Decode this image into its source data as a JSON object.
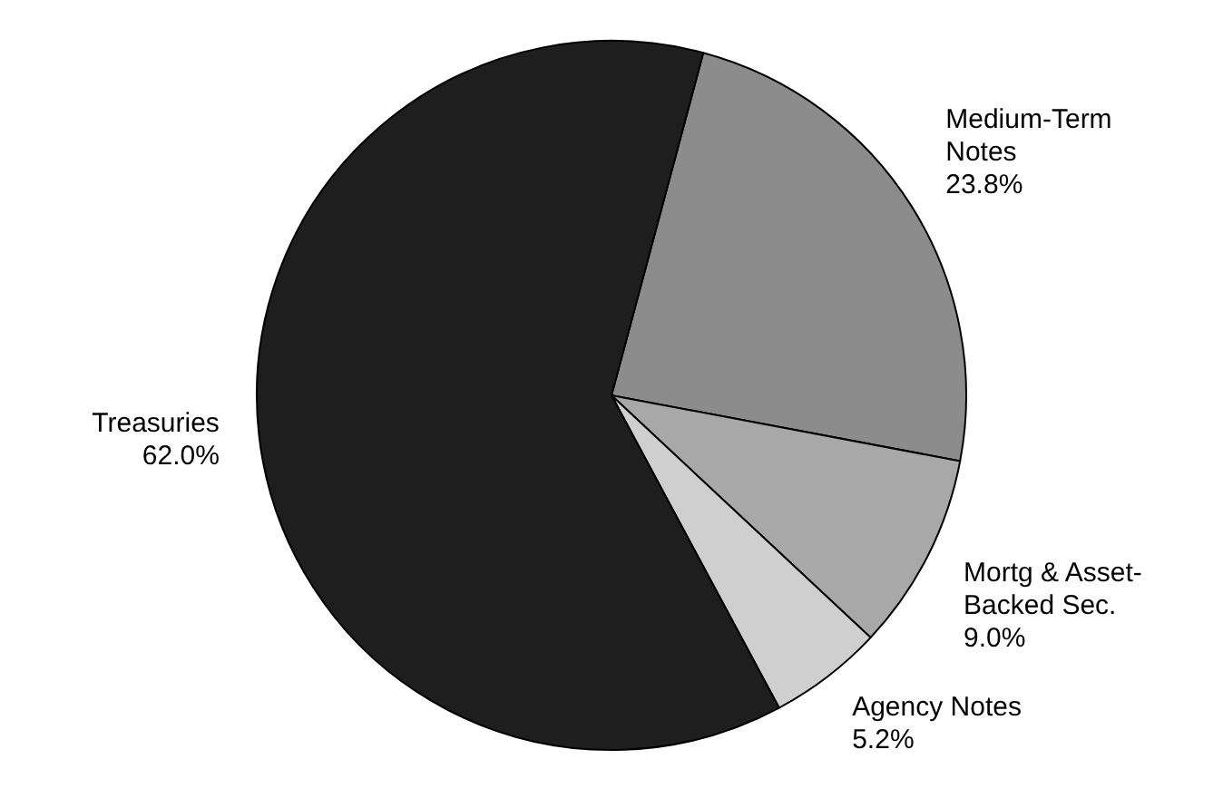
{
  "chart_data": {
    "type": "pie",
    "categories": [
      "Medium-Term Notes",
      "Mortg & Asset-Backed Sec.",
      "Agency Notes",
      "Treasuries"
    ],
    "values": [
      23.8,
      9.0,
      5.2,
      62.0
    ],
    "value_labels": [
      "23.8%",
      "9.0%",
      "5.2%",
      "62.0%"
    ],
    "colors": [
      "#8c8c8c",
      "#a8a8a8",
      "#cfcfcf",
      "#1e1e1e"
    ],
    "legend": false
  }
}
